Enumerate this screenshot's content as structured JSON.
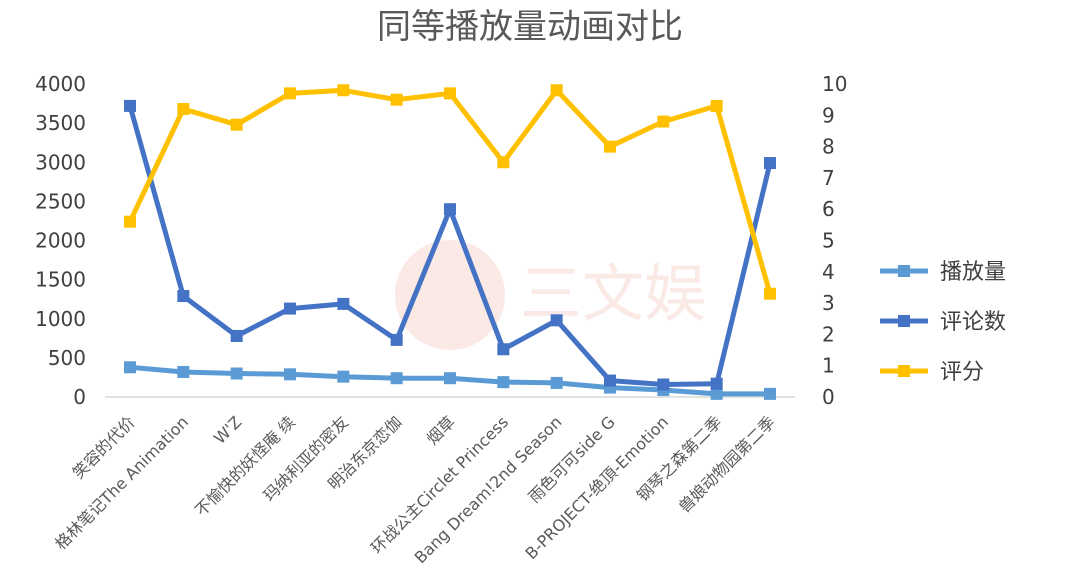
{
  "chart_data": {
    "type": "line",
    "title": "同等播放量动画对比",
    "categories": [
      "笑容的代价",
      "格林笔记The Animation",
      "W'Z",
      "不愉快的妖怪庵 续",
      "玛纳利亚的密友",
      "明治东京恋伽",
      "烟草",
      "环战公主Circlet Princess",
      "Bang Dream!2nd Season",
      "雨色可可side G",
      "B-PROJECT-绝頂-Emotion",
      "钢琴之森第二季",
      "兽娘动物园第二季"
    ],
    "y_left": {
      "ticks": [
        "0",
        "500",
        "1000",
        "1500",
        "2000",
        "2500",
        "3000",
        "3500",
        "4000"
      ],
      "min": 0,
      "max": 4000
    },
    "y_right": {
      "ticks": [
        "0",
        "1",
        "2",
        "3",
        "4",
        "5",
        "6",
        "7",
        "8",
        "9",
        "10"
      ],
      "min": 0,
      "max": 10
    },
    "series": [
      {
        "name": "播放量",
        "axis": "left",
        "color": "#5b9bd5",
        "values": [
          380,
          320,
          300,
          290,
          260,
          240,
          240,
          190,
          180,
          120,
          90,
          40,
          40
        ]
      },
      {
        "name": "评论数",
        "axis": "left",
        "color": "#4472c4",
        "values": [
          3720,
          1290,
          780,
          1130,
          1190,
          730,
          2400,
          610,
          980,
          210,
          160,
          170,
          2990
        ]
      },
      {
        "name": "评分",
        "axis": "right",
        "color": "#ffc000",
        "values": [
          5.6,
          9.2,
          8.7,
          9.7,
          9.8,
          9.5,
          9.7,
          7.5,
          9.8,
          8.0,
          8.8,
          9.3,
          3.3
        ]
      }
    ],
    "grid": false,
    "legend": "right"
  },
  "watermark": "三文娱"
}
